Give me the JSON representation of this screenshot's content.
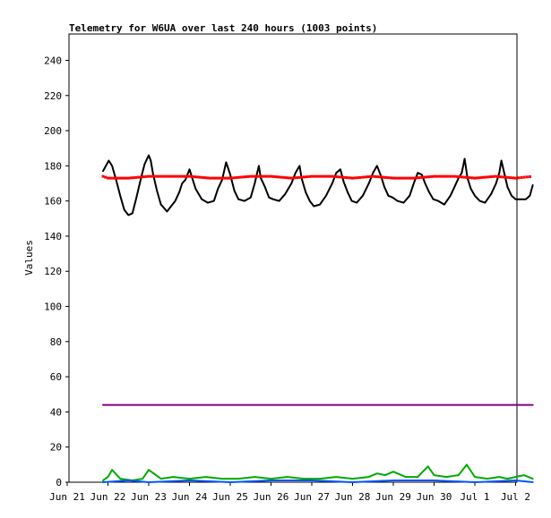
{
  "chart_data": {
    "type": "line",
    "title": "Telemetry for W6UA over last 240 hours (1003 points)",
    "xlabel": "",
    "ylabel": "Values",
    "ylim": [
      0,
      255
    ],
    "yticks": [
      0,
      20,
      40,
      60,
      80,
      100,
      120,
      140,
      160,
      180,
      200,
      220,
      240
    ],
    "xlim": [
      0,
      11
    ],
    "x_tick_labels": [
      "Jun 21",
      "Jun 22",
      "Jun 23",
      "Jun 24",
      "Jun 25",
      "Jun 26",
      "Jun 27",
      "Jun 28",
      "Jun 29",
      "Jun 30",
      "Jul 1",
      "Jul 2"
    ],
    "grid": false,
    "legend": "none",
    "series": [
      {
        "color": "#000000",
        "style": "line",
        "x": [
          0.88,
          0.95,
          1.02,
          1.1,
          1.2,
          1.3,
          1.4,
          1.5,
          1.6,
          1.7,
          1.8,
          1.9,
          2.0,
          2.05,
          2.1,
          2.2,
          2.3,
          2.45,
          2.55,
          2.65,
          2.75,
          2.82,
          2.9,
          3.0,
          3.15,
          3.3,
          3.45,
          3.6,
          3.7,
          3.8,
          3.9,
          4.0,
          4.1,
          4.2,
          4.35,
          4.5,
          4.6,
          4.7,
          4.75,
          4.85,
          4.95,
          5.05,
          5.2,
          5.35,
          5.5,
          5.6,
          5.7,
          5.75,
          5.85,
          5.95,
          6.05,
          6.2,
          6.35,
          6.5,
          6.6,
          6.7,
          6.78,
          6.88,
          6.98,
          7.1,
          7.25,
          7.4,
          7.5,
          7.6,
          7.7,
          7.78,
          7.88,
          7.98,
          8.1,
          8.25,
          8.4,
          8.5,
          8.6,
          8.7,
          8.78,
          8.88,
          8.98,
          9.1,
          9.25,
          9.4,
          9.5,
          9.6,
          9.68,
          9.75,
          9.82,
          9.9,
          10.0,
          10.12,
          10.25,
          10.4,
          10.52,
          10.6,
          10.65,
          10.72,
          10.8,
          10.9,
          11.0,
          11.12,
          11.25,
          11.35,
          11.42
        ],
        "y": [
          177,
          180,
          183,
          180,
          172,
          163,
          155,
          152,
          153,
          162,
          172,
          181,
          186,
          183,
          176,
          166,
          158,
          154,
          157,
          160,
          165,
          170,
          172,
          178,
          167,
          161,
          159,
          160,
          167,
          172,
          182,
          175,
          166,
          161,
          160,
          162,
          170,
          180,
          173,
          168,
          162,
          161,
          160,
          164,
          170,
          176,
          180,
          173,
          165,
          160,
          157,
          158,
          163,
          170,
          176,
          178,
          171,
          165,
          160,
          159,
          163,
          170,
          176,
          180,
          174,
          168,
          163,
          162,
          160,
          159,
          163,
          170,
          176,
          175,
          170,
          165,
          161,
          160,
          158,
          163,
          168,
          173,
          176,
          184,
          173,
          167,
          163,
          160,
          159,
          164,
          170,
          176,
          183,
          176,
          168,
          163,
          161,
          161,
          161,
          163,
          169
        ]
      },
      {
        "color": "#ff0000",
        "style": "points",
        "x": [
          0.88,
          1.0,
          1.2,
          1.5,
          2.0,
          2.5,
          3.0,
          3.5,
          4.0,
          4.5,
          5.0,
          5.5,
          6.0,
          6.5,
          7.0,
          7.5,
          8.0,
          8.5,
          9.0,
          9.5,
          10.0,
          10.5,
          11.0,
          11.42
        ],
        "y": [
          174,
          173,
          173,
          173,
          174,
          174,
          174,
          173,
          173,
          174,
          174,
          173,
          174,
          174,
          173,
          174,
          173,
          173,
          174,
          174,
          173,
          174,
          173,
          174
        ]
      },
      {
        "color": "#7f007f",
        "style": "line",
        "x": [
          0.88,
          11.42
        ],
        "y": [
          44,
          44
        ]
      },
      {
        "color": "#00aa00",
        "style": "line",
        "x": [
          0.88,
          1.0,
          1.1,
          1.3,
          1.6,
          1.85,
          2.0,
          2.3,
          2.6,
          3.0,
          3.4,
          3.8,
          4.2,
          4.6,
          5.0,
          5.4,
          5.8,
          6.2,
          6.6,
          7.0,
          7.4,
          7.6,
          7.8,
          8.0,
          8.3,
          8.6,
          8.85,
          9.0,
          9.3,
          9.6,
          9.8,
          10.0,
          10.3,
          10.6,
          10.8,
          11.0,
          11.2,
          11.42
        ],
        "y": [
          1,
          3,
          7,
          2,
          1,
          2,
          7,
          2,
          3,
          2,
          3,
          2,
          2,
          3,
          2,
          3,
          2,
          2,
          3,
          2,
          3,
          5,
          4,
          6,
          3,
          3,
          9,
          4,
          3,
          4,
          10,
          3,
          2,
          3,
          2,
          3,
          4,
          2
        ]
      },
      {
        "color": "#0055ff",
        "style": "line",
        "x": [
          0.88,
          1.5,
          2.0,
          3.0,
          4.0,
          5.0,
          6.0,
          7.0,
          8.0,
          9.0,
          10.0,
          11.0,
          11.42
        ],
        "y": [
          0,
          1,
          0,
          1,
          0,
          1,
          1,
          0,
          1,
          1,
          0,
          1,
          0
        ]
      }
    ]
  }
}
